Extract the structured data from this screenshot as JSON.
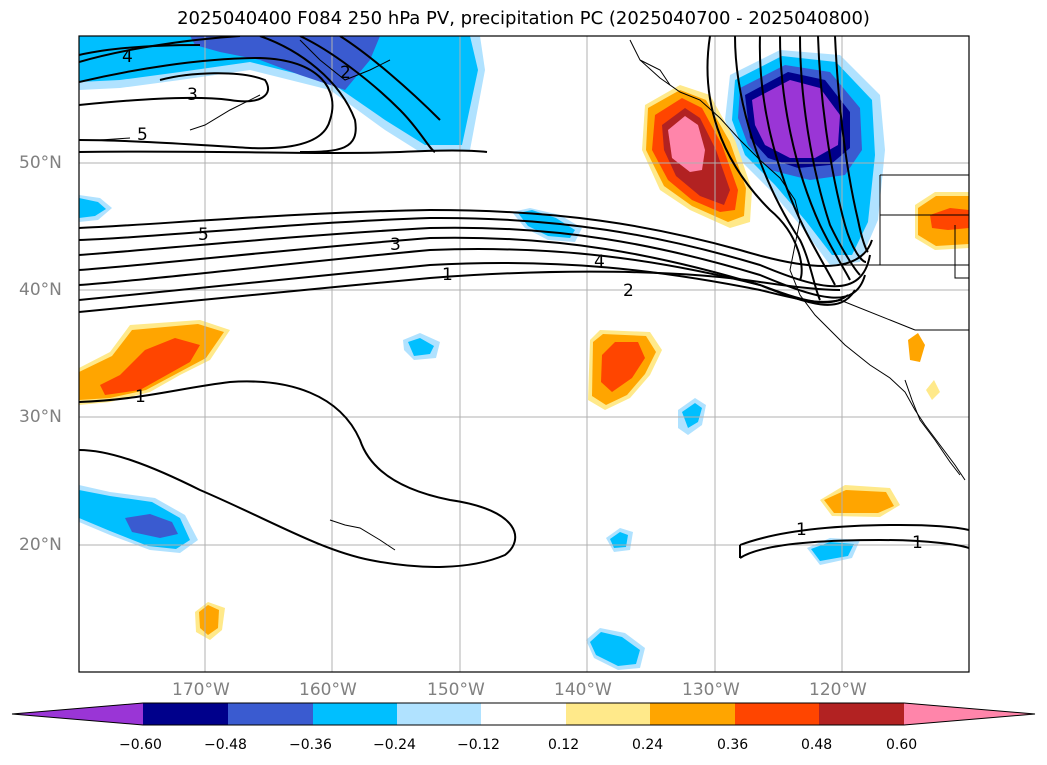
{
  "title": "2025040400 F084 250 hPa PV, precipitation PC (2025040700 - 2025040800)",
  "lat_labels": [
    "50°N",
    "40°N",
    "30°N",
    "20°N"
  ],
  "lon_labels": [
    "170°W",
    "160°W",
    "150°W",
    "140°W",
    "130°W",
    "120°W"
  ],
  "colorbar": {
    "ticks": [
      "−0.60",
      "−0.48",
      "−0.36",
      "−0.24",
      "−0.12",
      "0.12",
      "0.24",
      "0.36",
      "0.48",
      "0.60"
    ],
    "colors": [
      "#9a35d6",
      "#00008b",
      "#3a5bd0",
      "#00bfff",
      "#b0e2ff",
      "#ffffff",
      "#ffe98a",
      "#ffa500",
      "#ff4500",
      "#b22222",
      "#ff85aa"
    ]
  },
  "contour_labels": {
    "c4_top": "4",
    "c3_top": "3",
    "c5_top": "5",
    "c2_top": "2",
    "c5_mid": "5",
    "c3_mid": "3",
    "c1_mid": "1",
    "c4_east": "4",
    "c2_east": "2",
    "c1_west": "1",
    "c1_south_a": "1",
    "c1_south_b": "1"
  },
  "colors": {
    "contour": "#000000",
    "grid": "#b0b0b0",
    "coast": "#000000"
  }
}
